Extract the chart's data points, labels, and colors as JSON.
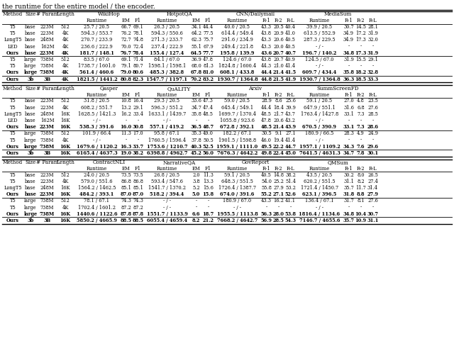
{
  "title": "the runtime for the entire model / the encoder.",
  "sections": [
    {
      "groups": [
        "WikiHop",
        "HotpotQA",
        "CNN/Dailymail",
        "MediaSum"
      ],
      "subcols": {
        "WikiHop": [
          "Runtime",
          "EM",
          "F1"
        ],
        "HotpotQA": [
          "Runtime",
          "EM",
          "F1"
        ],
        "CNN/Dailymail": [
          "Runtime",
          "R-1",
          "R-2",
          "R-L"
        ],
        "MediaSum": [
          "Runtime",
          "R-1",
          "R-2",
          "R-L"
        ]
      },
      "rows": [
        [
          "T5",
          "base",
          "223M",
          "512",
          "25.7 / 20.5",
          "66.7",
          "69.1",
          "26.3 / 20.5",
          "34.1",
          "44.4",
          "40.0 / 20.5",
          "43.3",
          "20.5",
          "40.4",
          "39.9 / 20.5",
          "30.7",
          "14.5",
          "28.1"
        ],
        [
          "T5",
          "base",
          "223M",
          "4K",
          "594.3 / 553.7",
          "76.2",
          "78.1",
          "594.3 / 550.6",
          "64.2",
          "77.5",
          "614.4 / 549.4",
          "43.8",
          "20.9",
          "41.0",
          "613.5 / 552.9",
          "34.9",
          "17.2",
          "31.9"
        ],
        [
          "LongT5",
          "base",
          "248M",
          "4K",
          "270.7 / 233.9",
          "72.7",
          "74.8",
          "271.3 / 233.7",
          "62.3",
          "75.7",
          "291.6 / 234.9",
          "43.3",
          "20.6",
          "40.5",
          "287.3 / 229.5",
          "34.9",
          "17.3",
          "32.0"
        ],
        [
          "LED",
          "base",
          "162M",
          "4K",
          "236.6 / 222.9",
          "70.0",
          "72.4",
          "237.4 / 222.9",
          "55.1",
          "67.9",
          "249.4 / 221.8",
          "43.3",
          "20.0",
          "40.5",
          "- / -",
          "-",
          "-",
          "-"
        ],
        [
          "Ours",
          "base",
          "223M",
          "4K",
          "181.7 / 148.1",
          "76.7",
          "78.4",
          "155.4 / 127.4",
          "64.5",
          "77.7",
          "195.8 / 139.9",
          "43.6",
          "20.7",
          "40.7",
          "196.7 / 140.2",
          "34.8",
          "17.3",
          "31.9"
        ],
        [
          "T5",
          "large",
          "738M",
          "512",
          "83.5 / 67.0",
          "69.1",
          "71.4",
          "84.1 / 67.0",
          "36.9",
          "47.8",
          "124.6 / 67.0",
          "43.8",
          "20.7",
          "40.9",
          "124.5 / 67.0",
          "31.9",
          "15.5",
          "29.1"
        ],
        [
          "T5",
          "large",
          "738M",
          "4K",
          "1738.7 / 1601.0",
          "79.1",
          "80.7",
          "1598.1 / 1598.1",
          "68.0",
          "81.3",
          "1824.8 / 1600.4",
          "44.3",
          "21.0",
          "41.4",
          "- / -",
          "-",
          "-",
          "-"
        ],
        [
          "Ours",
          "large",
          "738M",
          "4K",
          "561.4 / 460.6",
          "79.0",
          "80.6",
          "485.3 / 382.8",
          "67.8",
          "81.0",
          "608.1 / 433.8",
          "44.4",
          "21.4",
          "41.5",
          "609.7 / 434.4",
          "35.8",
          "18.2",
          "32.8"
        ],
        [
          "Ours",
          "3b",
          "3B",
          "4K",
          "1821.5 / 1441.2",
          "80.8",
          "82.3",
          "1547.7 / 1197.1",
          "70.2",
          "83.2",
          "1930.7 / 1364.8",
          "44.8",
          "21.5",
          "41.9",
          "1930.7 / 1364.8",
          "36.3",
          "18.5",
          "33.3"
        ]
      ],
      "bold_rows": [
        4,
        7,
        8
      ],
      "sep_after": [
        4,
        7
      ]
    },
    {
      "groups": [
        "Qasper",
        "QuALITY",
        "Arxiv",
        "SummScreenFD"
      ],
      "subcols": {
        "Qasper": [
          "Runtime",
          "EM",
          "F1"
        ],
        "QuALITY": [
          "Runtime",
          "EM",
          "F1"
        ],
        "Arxiv": [
          "Runtime",
          "R-1",
          "R-2",
          "R-L"
        ],
        "SummScreenFD": [
          "Runtime",
          "R-1",
          "R-2",
          "R-L"
        ]
      },
      "rows": [
        [
          "T5",
          "base",
          "223M",
          "512",
          "31.8 / 20.5",
          "10.8",
          "16.4",
          "29.3 / 20.5",
          "33.6",
          "47.3",
          "59.0 / 20.5",
          "28.9",
          "8.6",
          "25.6",
          "59.1 / 20.5",
          "27.0",
          "4.8",
          "23.5"
        ],
        [
          "T5",
          "base",
          "223M",
          "4K",
          "608.2 / 551.7",
          "13.2",
          "29.1",
          "596.3 / 551.2",
          "34.7",
          "47.4",
          "645.4 / 549.1",
          "44.4",
          "18.4",
          "39.9",
          "647.9 / 551.1",
          "31.6",
          "6.8",
          "27.6"
        ],
        [
          "LongT5",
          "base",
          "248M",
          "16K",
          "1628.5 / 1421.3",
          "16.2",
          "33.4",
          "1633.1 / 1439.7",
          "35.8",
          "48.5",
          "1699.7 / 1370.4",
          "48.5",
          "21.7",
          "43.7",
          "1763.4 / 1427.8",
          "33.1",
          "7.3",
          "28.5"
        ],
        [
          "LED",
          "base",
          "162M",
          "16K",
          "- / -",
          "-",
          "-",
          "- / -",
          "-",
          "-",
          "1055.8 / 923.6",
          "47.8",
          "20.6",
          "43.2",
          "- / -",
          "-",
          "-",
          "-"
        ],
        [
          "Ours",
          "base",
          "223M",
          "16K",
          "538.3 / 391.6",
          "16.0",
          "30.8",
          "557.1 / 419.2",
          "36.5",
          "48.7",
          "672.8 / 392.1",
          "48.5",
          "21.4",
          "43.9",
          "670.5 / 390.9",
          "33.1",
          "7.3",
          "28.6"
        ],
        [
          "T5",
          "large",
          "738M",
          "512",
          "101.9 / 66.4",
          "11.3",
          "17.0",
          "95.8 / 67.1",
          "35.3",
          "49.0",
          "182.2 / 67.1",
          "30.5",
          "9.1",
          "27.1",
          "180.9 / 66.5",
          "28.3",
          "4.9",
          "24.9"
        ],
        [
          "T5",
          "large",
          "738M",
          "4K",
          "- / -",
          "-",
          "-",
          "1760.5 / 1596.4",
          "37.8",
          "50.5",
          "1901.5 / 1598.8",
          "46.0",
          "19.4",
          "41.4",
          "- / -",
          "-",
          "-",
          "-"
        ],
        [
          "Ours",
          "large",
          "738M",
          "16K",
          "1679.6 / 1120.2",
          "16.3",
          "33.7",
          "1753.6 / 1210.7",
          "40.3",
          "52.5",
          "1959.1 / 1111.0",
          "49.5",
          "22.2",
          "44.7",
          "1957.1 / 1109.2",
          "34.3",
          "7.6",
          "29.6"
        ],
        [
          "Ours",
          "3b",
          "3B",
          "16K",
          "6165.4 / 4637.3",
          "19.0",
          "38.2",
          "6398.8 / 4962.7",
          "45.2",
          "56.0",
          "7676.3 / 4642.2",
          "49.8",
          "22.4",
          "45.0",
          "7641.5 / 4631.3",
          "34.7",
          "7.8",
          "30.1"
        ]
      ],
      "bold_rows": [
        4,
        7,
        8
      ],
      "sep_after": [
        4,
        7
      ]
    },
    {
      "groups": [
        "ContractNLI",
        "NarrativeQA",
        "GovReport",
        "QMSum"
      ],
      "subcols": {
        "ContractNLI": [
          "Runtime",
          "EM",
          "F1"
        ],
        "NarrativeQA": [
          "Runtime",
          "EM",
          "F1"
        ],
        "GovReport": [
          "Runtime",
          "R-1",
          "R-2",
          "R-L"
        ],
        "QMSum": [
          "Runtime",
          "R-1",
          "R-2",
          "R-L"
        ]
      },
      "rows": [
        [
          "T5",
          "base",
          "223M",
          "512",
          "24.0 / 20.5",
          "73.5",
          "73.5",
          "26.8 / 20.5",
          "2.0",
          "11.3",
          "59.1 / 20.5",
          "40.5",
          "14.8",
          "38.2",
          "43.5 / 20.5",
          "30.2",
          "8.0",
          "26.5"
        ],
        [
          "T5",
          "base",
          "223M",
          "4K",
          "579.0 / 551.6",
          "86.8",
          "86.8",
          "593.4 / 547.6",
          "3.8",
          "13.3",
          "648.3 / 551.5",
          "54.0",
          "25.2",
          "51.4",
          "620.2 / 551.5",
          "31.1",
          "8.2",
          "27.4"
        ],
        [
          "LongT5",
          "base",
          "248M",
          "16K",
          "1564.2 / 1462.5",
          "85.1",
          "85.1",
          "1541.7 / 1370.2",
          "5.2",
          "15.6",
          "1726.4 / 1387.7",
          "55.8",
          "27.9",
          "53.2",
          "1721.4 / 1450.7",
          "35.7",
          "11.7",
          "31.4"
        ],
        [
          "Ours",
          "base",
          "223M",
          "16K",
          "484.2 / 393.1",
          "87.0",
          "87.0",
          "518.2 / 394.4",
          "5.0",
          "15.8",
          "674.0 / 391.6",
          "55.2",
          "27.1",
          "52.6",
          "623.1 / 396.5",
          "31.8",
          "8.8",
          "27.9"
        ],
        [
          "T5",
          "large",
          "738M",
          "512",
          "78.1 / 67.1",
          "74.3",
          "74.3",
          "- / -",
          "-",
          "-",
          "180.9 / 67.0",
          "43.3",
          "16.2",
          "41.1",
          "136.4 / 67.1",
          "31.7",
          "8.1",
          "27.6"
        ],
        [
          "T5",
          "large",
          "738M",
          "4K",
          "1702.4 / 1601.2",
          "87.2",
          "87.2",
          "- / -",
          "-",
          "-",
          "- / -",
          "-",
          "-",
          "-",
          "- / -",
          "-",
          "-",
          "-"
        ],
        [
          "Ours",
          "large",
          "738M",
          "16K",
          "1440.6 / 1122.6",
          "87.8",
          "87.8",
          "1551.7 / 1133.9",
          "6.6",
          "18.7",
          "1955.5 / 1113.8",
          "56.3",
          "28.0",
          "53.8",
          "1816.4 / 1134.6",
          "34.8",
          "10.4",
          "30.7"
        ],
        [
          "Ours",
          "3b",
          "3B",
          "16K",
          "5850.2 / 4665.9",
          "88.5",
          "88.5",
          "6055.4 / 4659.4",
          "8.2",
          "21.2",
          "7668.2 / 4642.7",
          "56.9",
          "28.5",
          "54.3",
          "7146.7 / 4655.6",
          "35.7",
          "10.9",
          "31.1"
        ]
      ],
      "bold_rows": [
        3,
        6,
        7
      ],
      "sep_after": [
        3,
        6
      ]
    }
  ]
}
